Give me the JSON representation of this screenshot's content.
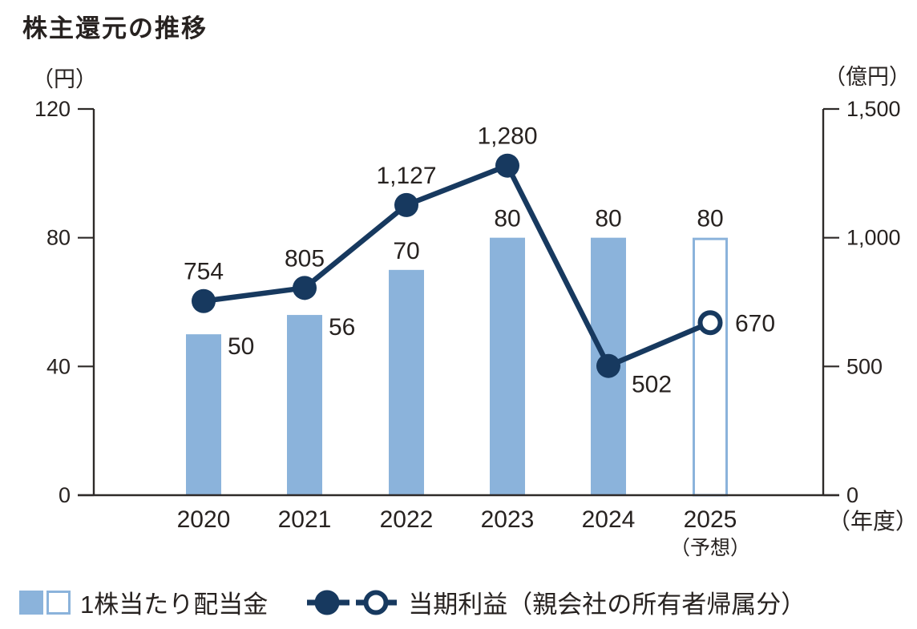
{
  "title": "株主還元の推移",
  "chart_data": {
    "type": "combo bar+line, dual y-axis",
    "categories": [
      "2020",
      "2021",
      "2022",
      "2023",
      "2024",
      "2025"
    ],
    "category_sublabels": [
      "",
      "",
      "",
      "",
      "",
      "（予想）"
    ],
    "x_axis_unit": "（年度）",
    "left_axis": {
      "unit": "（円）",
      "ticks": [
        "0",
        "40",
        "80",
        "120"
      ],
      "tick_values": [
        0,
        40,
        80,
        120
      ],
      "ylim": [
        0,
        120
      ]
    },
    "right_axis": {
      "unit": "（億円）",
      "ticks": [
        "0",
        "500",
        "1,000",
        "1,500"
      ],
      "tick_values": [
        0,
        500,
        1000,
        1500
      ],
      "ylim": [
        0,
        1500
      ]
    },
    "series": [
      {
        "name": "1株当たり配当金",
        "type": "bar",
        "axis": "left",
        "values": [
          50,
          56,
          70,
          80,
          80,
          80
        ],
        "labels": [
          "50",
          "56",
          "70",
          "80",
          "80",
          "80"
        ],
        "label_placement": [
          "right",
          "right",
          "above",
          "above",
          "above",
          "above"
        ],
        "forecast_index": 5
      },
      {
        "name": "当期利益（親会社の所有者帰属分）",
        "type": "line",
        "axis": "right",
        "values": [
          754,
          805,
          1127,
          1280,
          502,
          670
        ],
        "labels": [
          "754",
          "805",
          "1,127",
          "1,280",
          "502",
          "670"
        ],
        "label_placement": [
          "above",
          "above",
          "above",
          "above",
          "below-right",
          "right"
        ],
        "forecast_index": 5
      }
    ],
    "grid": false,
    "legend_position": "bottom-left"
  },
  "legend": {
    "items": [
      {
        "label": "1株当たり配当金"
      },
      {
        "label": "当期利益（親会社の所有者帰属分）"
      }
    ]
  },
  "colors": {
    "bar": "#8BB3DB",
    "bar_forecast_outline": "#8BB3DB",
    "line": "#17395F",
    "text": "#272220",
    "axis": "#2E2A28",
    "background": "#FFFFFF"
  }
}
